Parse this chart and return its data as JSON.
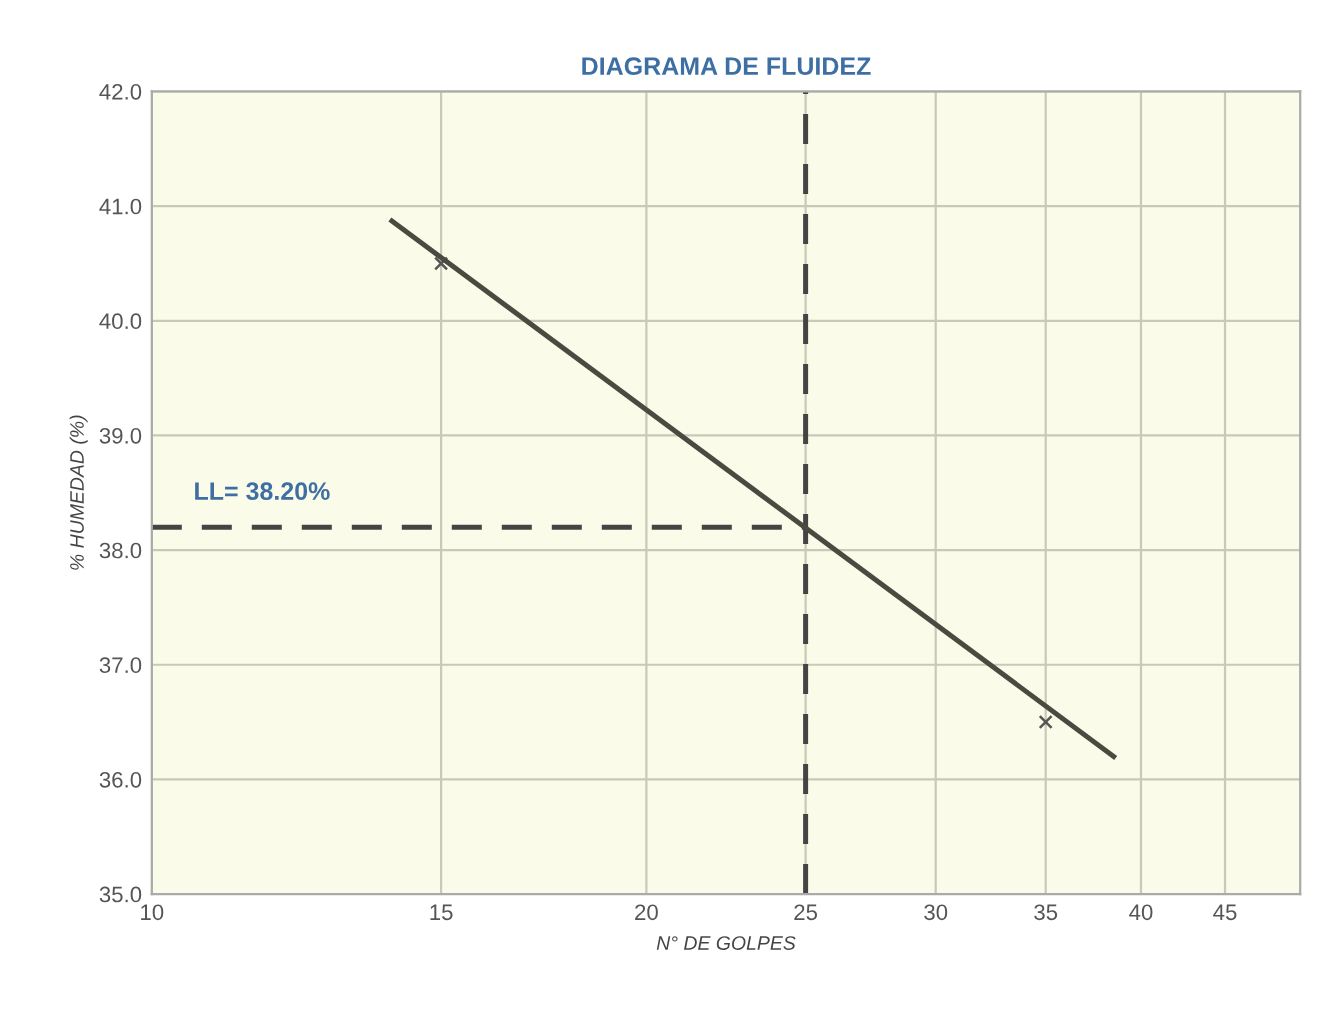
{
  "chart_data": {
    "type": "scatter",
    "title": "DIAGRAMA DE FLUIDEZ",
    "xlabel": "N° DE GOLPES",
    "ylabel": "% HUMEDAD (%)",
    "log": "x",
    "xlim": [
      10,
      50
    ],
    "xticks": [
      10,
      15,
      20,
      25,
      30,
      35,
      40,
      45
    ],
    "ylim": [
      35,
      42
    ],
    "yticks": [
      {
        "value": 35,
        "label": "35.0"
      },
      {
        "value": 36,
        "label": "36.0"
      },
      {
        "value": 37,
        "label": "37.0"
      },
      {
        "value": 38,
        "label": "38.0"
      },
      {
        "value": 39,
        "label": "39.0"
      },
      {
        "value": 40,
        "label": "40.0"
      },
      {
        "value": 41,
        "label": "41.0"
      },
      {
        "value": 42,
        "label": "42.0"
      }
    ],
    "grid": true,
    "legend": false,
    "series": [
      {
        "color": "#555555",
        "marker": "cross",
        "x": [
          15,
          35
        ],
        "values": [
          40.5,
          36.5
        ]
      },
      {
        "type": "line",
        "color": "#4a4a40",
        "marker": "none",
        "line_style": "solid",
        "x": [
          14,
          38.5
        ],
        "values": [
          40.87,
          36.2
        ]
      }
    ],
    "ref_lines": [
      {
        "axis": "x",
        "value": 25,
        "label": null,
        "color": "#444444",
        "line_style": "dashed"
      },
      {
        "axis": "y",
        "value": 38.2,
        "label": "LL= 38.20%",
        "color": "#444444",
        "line_style": "dashed"
      }
    ]
  }
}
